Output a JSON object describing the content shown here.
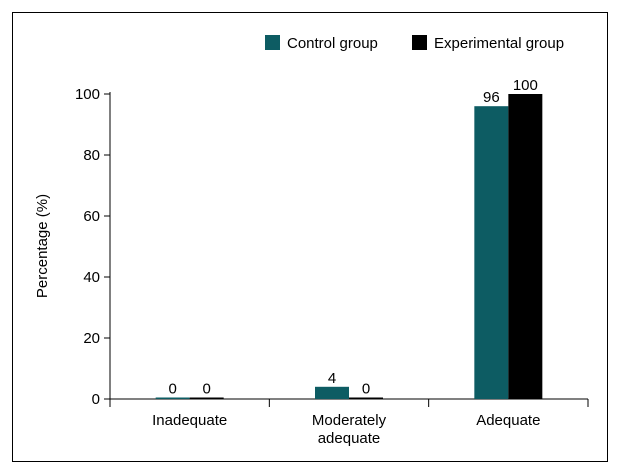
{
  "chart_data": {
    "type": "bar",
    "categories": [
      "Inadequate",
      "Moderately adequate",
      "Adequate"
    ],
    "category_lines": [
      [
        "Inadequate"
      ],
      [
        "Moderately",
        "adequate"
      ],
      [
        "Adequate"
      ]
    ],
    "series": [
      {
        "name": "Control group",
        "values": [
          0,
          4,
          96
        ],
        "color": "#0d5c63"
      },
      {
        "name": "Experimental group",
        "values": [
          0,
          0,
          100
        ],
        "color": "#000000"
      }
    ],
    "title": "",
    "xlabel": "",
    "ylabel": "Percentage (%)",
    "ylim": [
      0,
      100
    ],
    "yticks": [
      0,
      20,
      40,
      60,
      80,
      100
    ],
    "grid": false,
    "legend_position": "top-right",
    "data_labels": true
  }
}
